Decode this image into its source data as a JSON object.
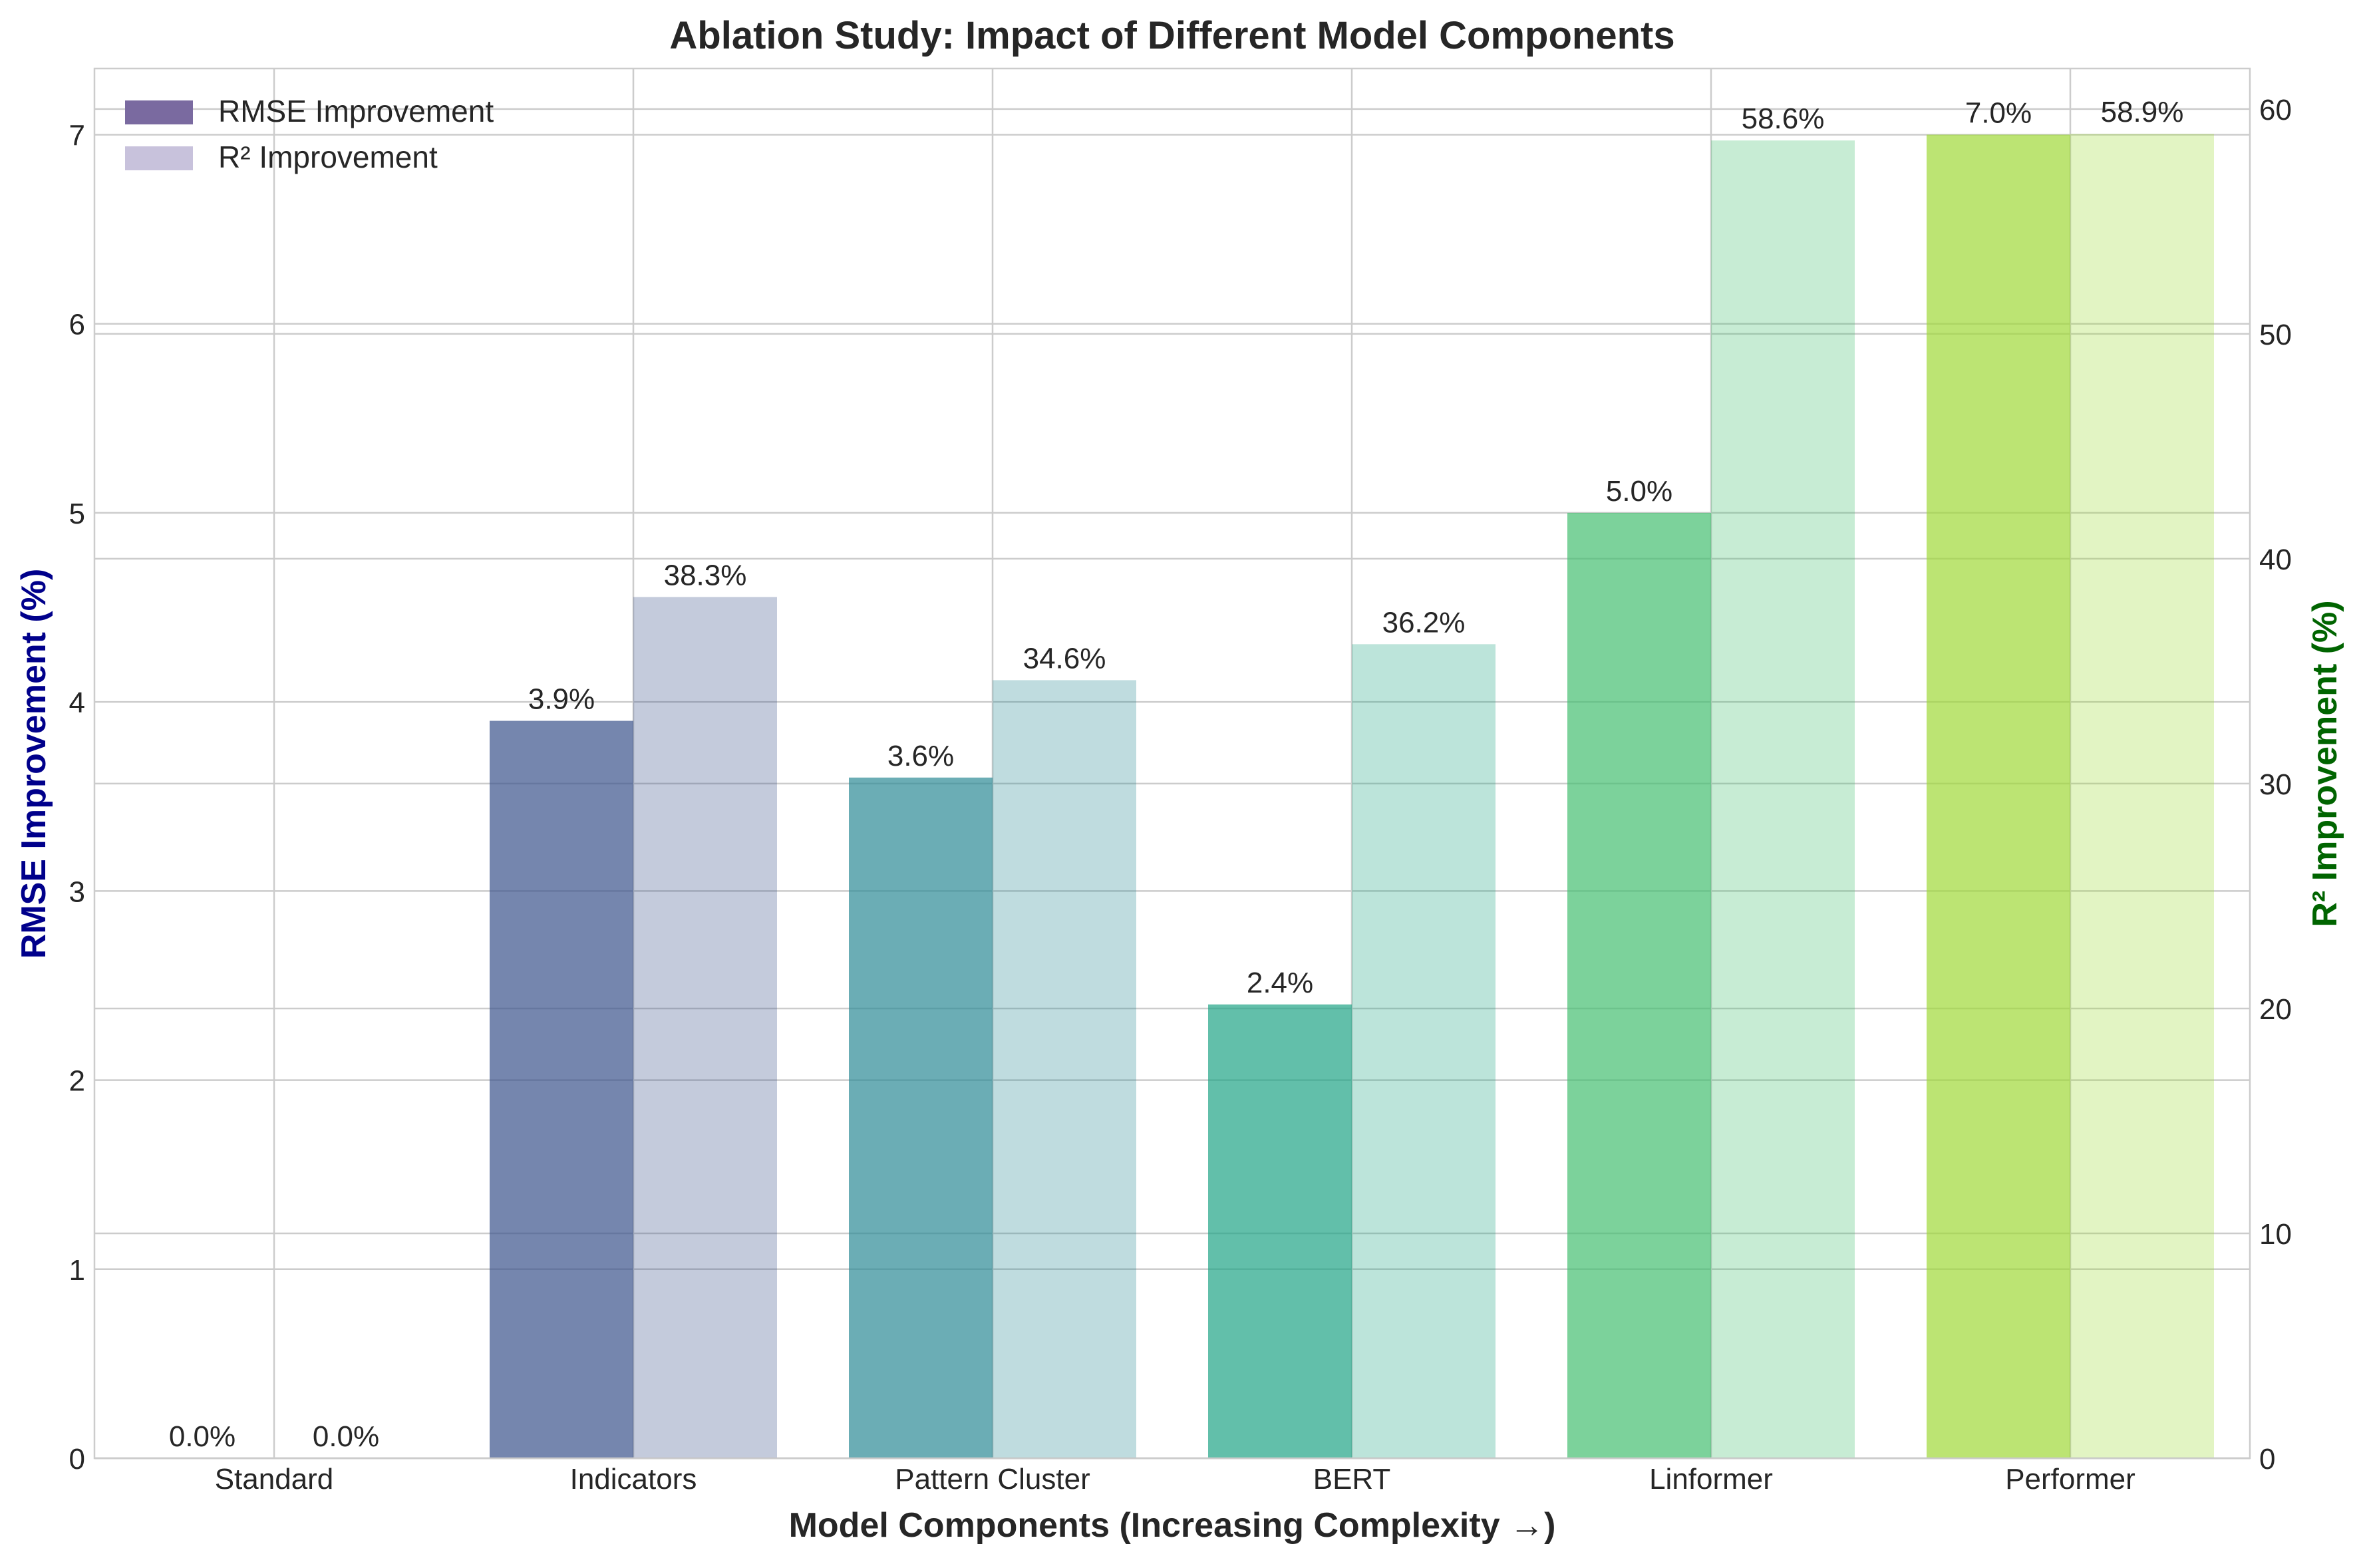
{
  "chart_data": {
    "type": "bar",
    "title": "Ablation Study: Impact of Different Model Components",
    "xlabel": "Model Components (Increasing Complexity →)",
    "ylabel_left": "RMSE Improvement (%)",
    "ylabel_right": "R² Improvement (%)",
    "categories": [
      "Standard",
      "Indicators",
      "Pattern Cluster",
      "BERT",
      "Linformer",
      "Performer"
    ],
    "ylim_left": [
      0,
      7.35
    ],
    "ylim_right": [
      0,
      61.8
    ],
    "yticks_left": [
      0,
      1,
      2,
      3,
      4,
      5,
      6,
      7
    ],
    "yticks_right": [
      0,
      10,
      20,
      30,
      40,
      50,
      60
    ],
    "grid": true,
    "legend_position": "top-left",
    "series": [
      {
        "name": "RMSE Improvement",
        "axis": "left",
        "values": [
          0.0,
          3.9,
          3.6,
          2.4,
          5.0,
          7.0
        ],
        "labels": [
          "0.0%",
          "3.9%",
          "3.6%",
          "2.4%",
          "5.0%",
          "7.0%"
        ],
        "colors": [
          "#440154",
          "#3b528b",
          "#2c8a96",
          "#20a486",
          "#44bf70",
          "#9fd938"
        ],
        "legend_color": "#7a6aa0"
      },
      {
        "name": "R² Improvement",
        "axis": "right",
        "values": [
          0.0,
          38.3,
          34.6,
          36.2,
          58.6,
          58.9
        ],
        "labels": [
          "0.0%",
          "38.3%",
          "34.6%",
          "36.2%",
          "58.6%",
          "58.9%"
        ],
        "colors": [
          "#440154",
          "#3b528b",
          "#2c8a96",
          "#20a486",
          "#44bf70",
          "#9fd938"
        ],
        "legend_color": "#c8c2dc"
      }
    ],
    "colors": {
      "left_axis_label": "#00008b",
      "right_axis_label": "#006400",
      "text": "#262626",
      "grid": "#cccccc"
    }
  }
}
